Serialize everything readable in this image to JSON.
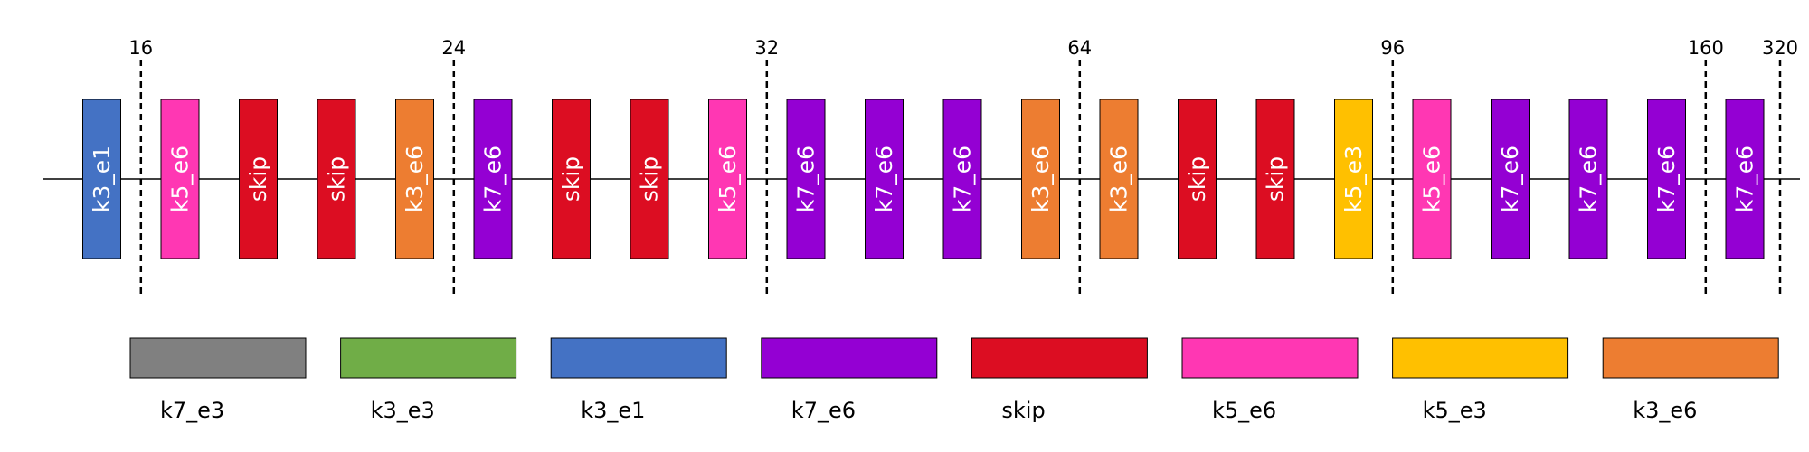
{
  "colors": {
    "k7_e3": "#808080",
    "k3_e3": "#70ad47",
    "k3_e1": "#4472c4",
    "k7_e6": "#9400d3",
    "skip": "#dc0d22",
    "k5_e6": "#ff37b3",
    "k5_e3": "#ffc000",
    "k3_e6": "#ed7d31"
  },
  "blocks": [
    "k3_e1",
    "k5_e6",
    "skip",
    "skip",
    "k3_e6",
    "k7_e6",
    "skip",
    "skip",
    "k5_e6",
    "k7_e6",
    "k7_e6",
    "k7_e6",
    "k3_e6",
    "k3_e6",
    "skip",
    "skip",
    "k5_e3",
    "k5_e6",
    "k7_e6",
    "k7_e6",
    "k7_e6",
    "k7_e6"
  ],
  "stages": [
    {
      "label": "16",
      "after_block": 1
    },
    {
      "label": "24",
      "after_block": 5
    },
    {
      "label": "32",
      "after_block": 9
    },
    {
      "label": "64",
      "after_block": 13
    },
    {
      "label": "96",
      "after_block": 17
    },
    {
      "label": "160",
      "after_block": 21
    },
    {
      "label": "320",
      "after_block": 22
    }
  ],
  "legend": [
    "k7_e3",
    "k3_e3",
    "k3_e1",
    "k7_e6",
    "skip",
    "k5_e6",
    "k5_e3",
    "k3_e6"
  ]
}
